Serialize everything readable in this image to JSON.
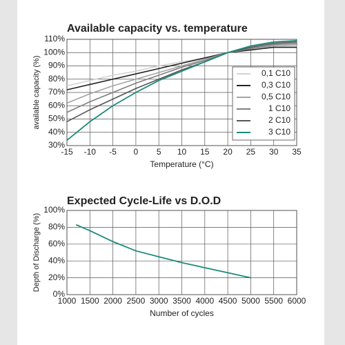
{
  "chart_data": [
    {
      "type": "line",
      "title": "Available capacity vs. temperature",
      "xlabel": "Temperature (°C)",
      "ylabel": "available capacity (%)",
      "x": [
        -15,
        -10,
        -5,
        0,
        5,
        10,
        15,
        20,
        25,
        30,
        35
      ],
      "series": [
        {
          "name": "0,1 C10",
          "color": "#d2d2d2",
          "values": [
            75,
            79,
            83,
            86,
            90,
            93,
            96,
            100,
            102,
            104,
            105
          ]
        },
        {
          "name": "0,3 C10",
          "color": "#222222",
          "values": [
            72,
            76,
            80,
            84,
            88,
            92,
            96,
            100,
            102,
            104,
            104
          ]
        },
        {
          "name": "0,5 C10",
          "color": "#a3a3a3",
          "values": [
            62,
            69,
            75,
            80,
            85,
            90,
            95,
            100,
            103,
            105,
            106
          ]
        },
        {
          "name": "1 C10",
          "color": "#7f7f7f",
          "values": [
            55,
            63,
            70,
            77,
            83,
            89,
            94,
            100,
            103,
            106,
            107
          ]
        },
        {
          "name": "2 C10",
          "color": "#555555",
          "values": [
            48,
            57,
            65,
            73,
            80,
            87,
            93,
            100,
            104,
            107,
            108
          ]
        },
        {
          "name": "3 C10",
          "color": "#1a8a7a",
          "values": [
            34,
            48,
            60,
            70,
            79,
            86,
            93,
            100,
            105,
            108,
            109
          ]
        }
      ],
      "xlim": [
        -15,
        35
      ],
      "ylim": [
        30,
        110
      ],
      "xticks": [
        -15,
        -10,
        -5,
        0,
        5,
        10,
        15,
        20,
        25,
        30,
        35
      ],
      "yticks": [
        {
          "value": 30,
          "label": "30%"
        },
        {
          "value": 40,
          "label": "40%"
        },
        {
          "value": 50,
          "label": "50%"
        },
        {
          "value": 60,
          "label": "60%"
        },
        {
          "value": 70,
          "label": "70%"
        },
        {
          "value": 80,
          "label": "80%"
        },
        {
          "value": 90,
          "label": "90%"
        },
        {
          "value": 100,
          "label": "100%"
        },
        {
          "value": 110,
          "label": "110%"
        }
      ],
      "grid": true,
      "legend": "right"
    },
    {
      "type": "line",
      "title": "Expected Cycle-Life vs D.O.D",
      "xlabel": "Number of cycles",
      "ylabel": "Depth of Discharge (%)",
      "x": [
        1200,
        1500,
        2000,
        2500,
        3000,
        3500,
        4000,
        4500,
        5000
      ],
      "series": [
        {
          "color": "#1a8a7a",
          "values": [
            83,
            76,
            63,
            52,
            45,
            38,
            32,
            26,
            20
          ]
        }
      ],
      "xlim": [
        1000,
        6000
      ],
      "ylim": [
        0,
        100
      ],
      "xticks": [
        1000,
        1500,
        2000,
        2500,
        3000,
        3500,
        4000,
        4500,
        5000,
        5500,
        6000
      ],
      "yticks": [
        {
          "value": 0,
          "label": "0%"
        },
        {
          "value": 20,
          "label": "20%"
        },
        {
          "value": 40,
          "label": "40%"
        },
        {
          "value": 60,
          "label": "60%"
        },
        {
          "value": 80,
          "label": "80%"
        },
        {
          "value": 100,
          "label": "100%"
        }
      ],
      "grid": true
    }
  ]
}
